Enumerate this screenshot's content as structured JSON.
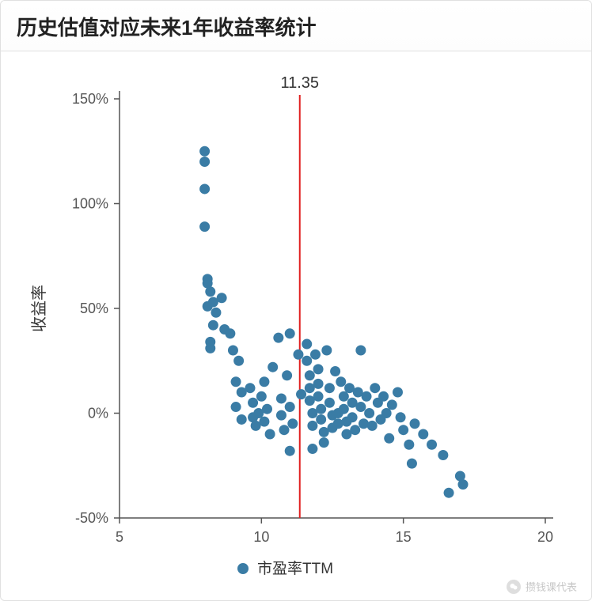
{
  "card": {
    "title": "历史估值对应未来1年收益率统计"
  },
  "chart": {
    "type": "scatter",
    "ylabel": "收益率",
    "xlim": [
      5,
      20
    ],
    "ylim": [
      -50,
      150
    ],
    "xtick_step": 5,
    "ytick_step": 50,
    "y_tick_suffix": "%",
    "background_color": "#ffffff",
    "axis_color": "#555555",
    "tick_label_color": "#555555",
    "tick_fontsize": 18,
    "ylabel_fontsize": 20,
    "marker_color": "#3a7ca5",
    "marker_radius": 6.5,
    "marker_opacity": 1,
    "vline": {
      "x": 11.35,
      "label": "11.35",
      "color": "#e02020",
      "width": 2,
      "label_color": "#333333",
      "label_fontsize": 20
    },
    "legend": {
      "position": "bottom-center",
      "items": [
        {
          "label": "市盈率TTM",
          "marker_color": "#3a7ca5"
        }
      ],
      "fontsize": 19,
      "text_color": "#333333"
    },
    "points": [
      [
        8.0,
        125
      ],
      [
        8.0,
        120
      ],
      [
        8.0,
        107
      ],
      [
        8.0,
        89
      ],
      [
        8.1,
        62
      ],
      [
        8.1,
        64
      ],
      [
        8.2,
        58
      ],
      [
        8.1,
        51
      ],
      [
        8.3,
        53
      ],
      [
        8.3,
        42
      ],
      [
        8.2,
        34
      ],
      [
        8.2,
        31
      ],
      [
        8.4,
        48
      ],
      [
        8.6,
        55
      ],
      [
        8.7,
        40
      ],
      [
        8.9,
        38
      ],
      [
        9.0,
        30
      ],
      [
        9.2,
        25
      ],
      [
        9.1,
        15
      ],
      [
        9.3,
        10
      ],
      [
        9.1,
        3
      ],
      [
        9.3,
        -3
      ],
      [
        9.6,
        12
      ],
      [
        9.7,
        5
      ],
      [
        9.7,
        -2
      ],
      [
        9.8,
        -6
      ],
      [
        9.9,
        0
      ],
      [
        10.0,
        8
      ],
      [
        10.1,
        -4
      ],
      [
        10.1,
        15
      ],
      [
        10.2,
        2
      ],
      [
        10.3,
        -10
      ],
      [
        10.4,
        22
      ],
      [
        10.6,
        36
      ],
      [
        10.7,
        7
      ],
      [
        10.7,
        -1
      ],
      [
        10.9,
        18
      ],
      [
        10.8,
        -8
      ],
      [
        11.0,
        38
      ],
      [
        11.0,
        3
      ],
      [
        11.1,
        -5
      ],
      [
        11.0,
        -18
      ],
      [
        11.3,
        28
      ],
      [
        11.4,
        9
      ],
      [
        11.6,
        33
      ],
      [
        11.6,
        25
      ],
      [
        11.7,
        18
      ],
      [
        11.7,
        12
      ],
      [
        11.7,
        6
      ],
      [
        11.8,
        0
      ],
      [
        11.8,
        -6
      ],
      [
        11.8,
        -17
      ],
      [
        11.9,
        28
      ],
      [
        12.0,
        21
      ],
      [
        12.0,
        14
      ],
      [
        12.0,
        8
      ],
      [
        12.1,
        2
      ],
      [
        12.1,
        -3
      ],
      [
        12.2,
        -9
      ],
      [
        12.2,
        -14
      ],
      [
        12.3,
        30
      ],
      [
        12.4,
        12
      ],
      [
        12.4,
        5
      ],
      [
        12.5,
        -1
      ],
      [
        12.5,
        -7
      ],
      [
        12.6,
        20
      ],
      [
        12.7,
        0
      ],
      [
        12.7,
        -5
      ],
      [
        12.8,
        15
      ],
      [
        12.9,
        8
      ],
      [
        12.9,
        2
      ],
      [
        13.0,
        -4
      ],
      [
        13.0,
        -10
      ],
      [
        13.1,
        12
      ],
      [
        13.2,
        5
      ],
      [
        13.2,
        -2
      ],
      [
        13.3,
        -8
      ],
      [
        13.4,
        10
      ],
      [
        13.5,
        30
      ],
      [
        13.5,
        3
      ],
      [
        13.6,
        -5
      ],
      [
        13.7,
        8
      ],
      [
        13.8,
        0
      ],
      [
        13.9,
        -6
      ],
      [
        14.0,
        12
      ],
      [
        14.1,
        5
      ],
      [
        14.2,
        -3
      ],
      [
        14.3,
        8
      ],
      [
        14.4,
        0
      ],
      [
        14.5,
        -12
      ],
      [
        14.6,
        4
      ],
      [
        14.8,
        10
      ],
      [
        14.9,
        -2
      ],
      [
        15.0,
        -8
      ],
      [
        15.2,
        -15
      ],
      [
        15.4,
        -5
      ],
      [
        15.3,
        -24
      ],
      [
        15.7,
        -10
      ],
      [
        16.0,
        -15
      ],
      [
        16.4,
        -20
      ],
      [
        16.6,
        -38
      ],
      [
        17.0,
        -30
      ],
      [
        17.1,
        -34
      ]
    ]
  },
  "watermark": {
    "text": "攒钱课代表"
  }
}
